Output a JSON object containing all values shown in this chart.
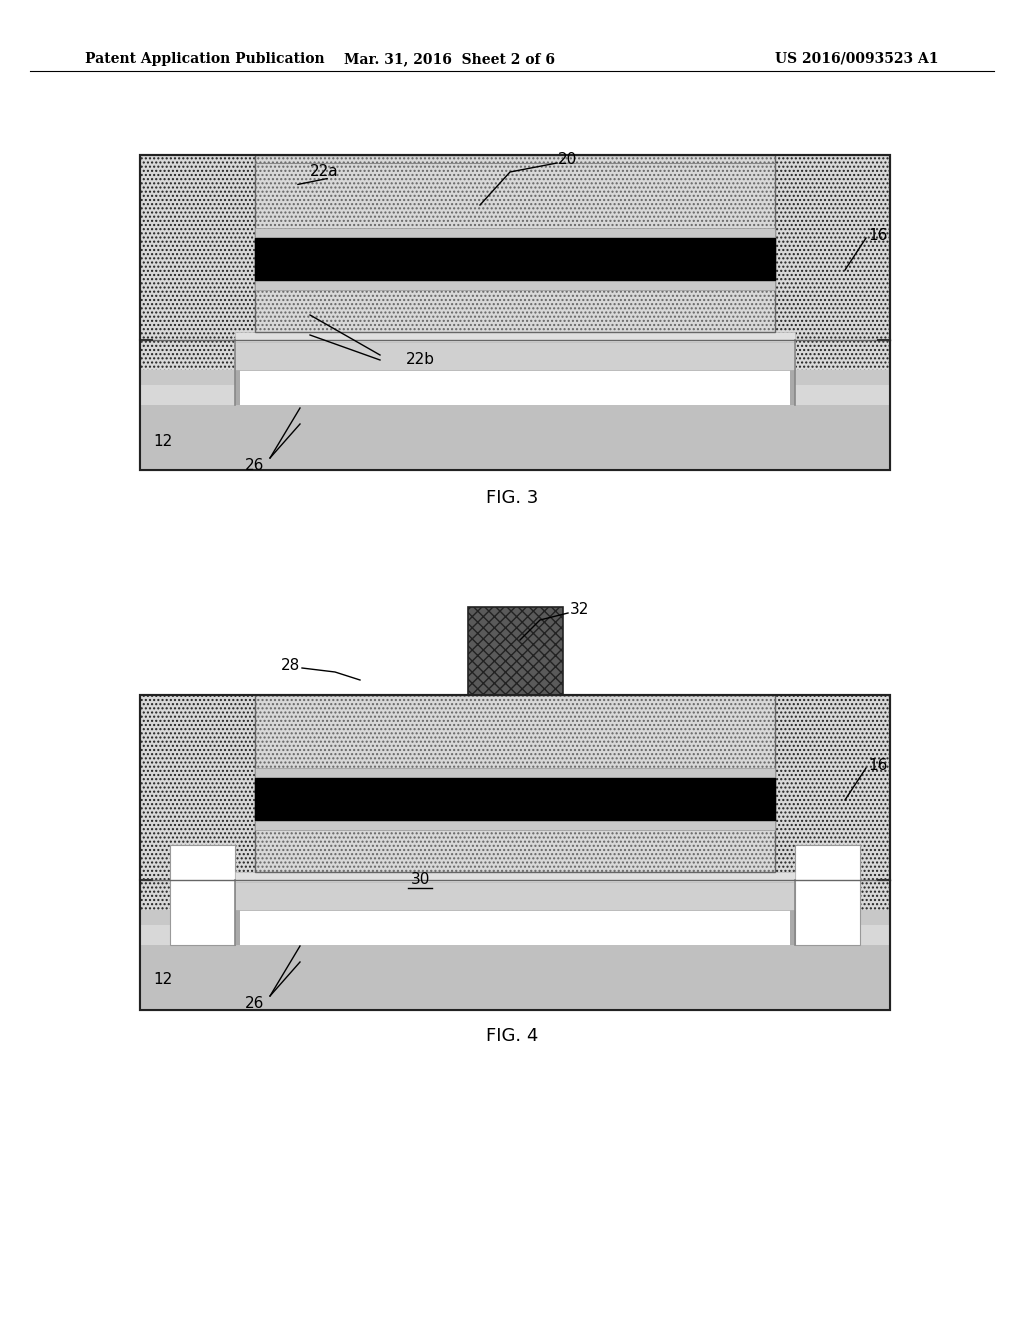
{
  "bg_color": "#ffffff",
  "header_left": "Patent Application Publication",
  "header_mid": "Mar. 31, 2016  Sheet 2 of 6",
  "header_right": "US 2016/0093523 A1",
  "fig3_caption": "FIG. 3",
  "fig4_caption": "FIG. 4",
  "color_dotted_light": "#d8d8d8",
  "color_dotted_dark": "#585858",
  "color_gray_med": "#b8b8b8",
  "color_gray_light": "#d0d0d0",
  "color_gray_stripe": "#c8c8c8",
  "color_black": "#000000",
  "color_white": "#ffffff",
  "color_border": "#222222",
  "color_wall": "#cccccc",
  "hatch_dot": "....",
  "header_fontsize": 10,
  "label_fontsize": 11,
  "caption_fontsize": 13
}
